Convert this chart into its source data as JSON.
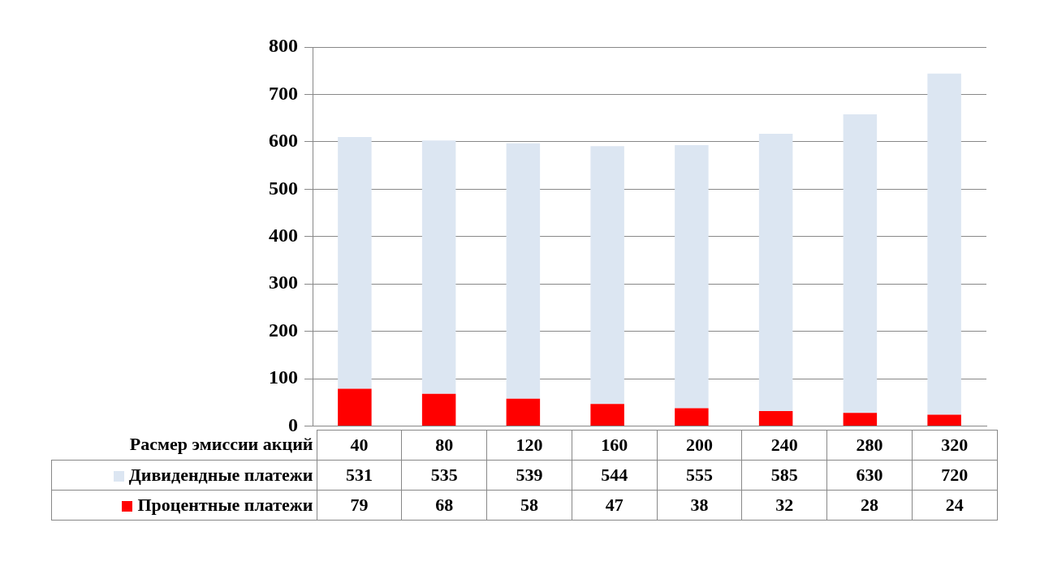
{
  "chart_data": {
    "type": "bar",
    "stacked": true,
    "xlabel": "Расмер эмиссии акций",
    "categories": [
      "40",
      "80",
      "120",
      "160",
      "200",
      "240",
      "280",
      "320"
    ],
    "series": [
      {
        "name": "Процентные платежи",
        "color": "#ff0000",
        "values": [
          79,
          68,
          58,
          47,
          38,
          32,
          28,
          24
        ]
      },
      {
        "name": "Дивидендные платежи",
        "color": "#dce6f2",
        "values": [
          531,
          535,
          539,
          544,
          555,
          585,
          630,
          720
        ]
      }
    ],
    "ylim": [
      0,
      800
    ],
    "yticks": [
      0,
      100,
      200,
      300,
      400,
      500,
      600,
      700,
      800
    ],
    "grid": "y",
    "legend": "bottom",
    "data_labels": true
  }
}
